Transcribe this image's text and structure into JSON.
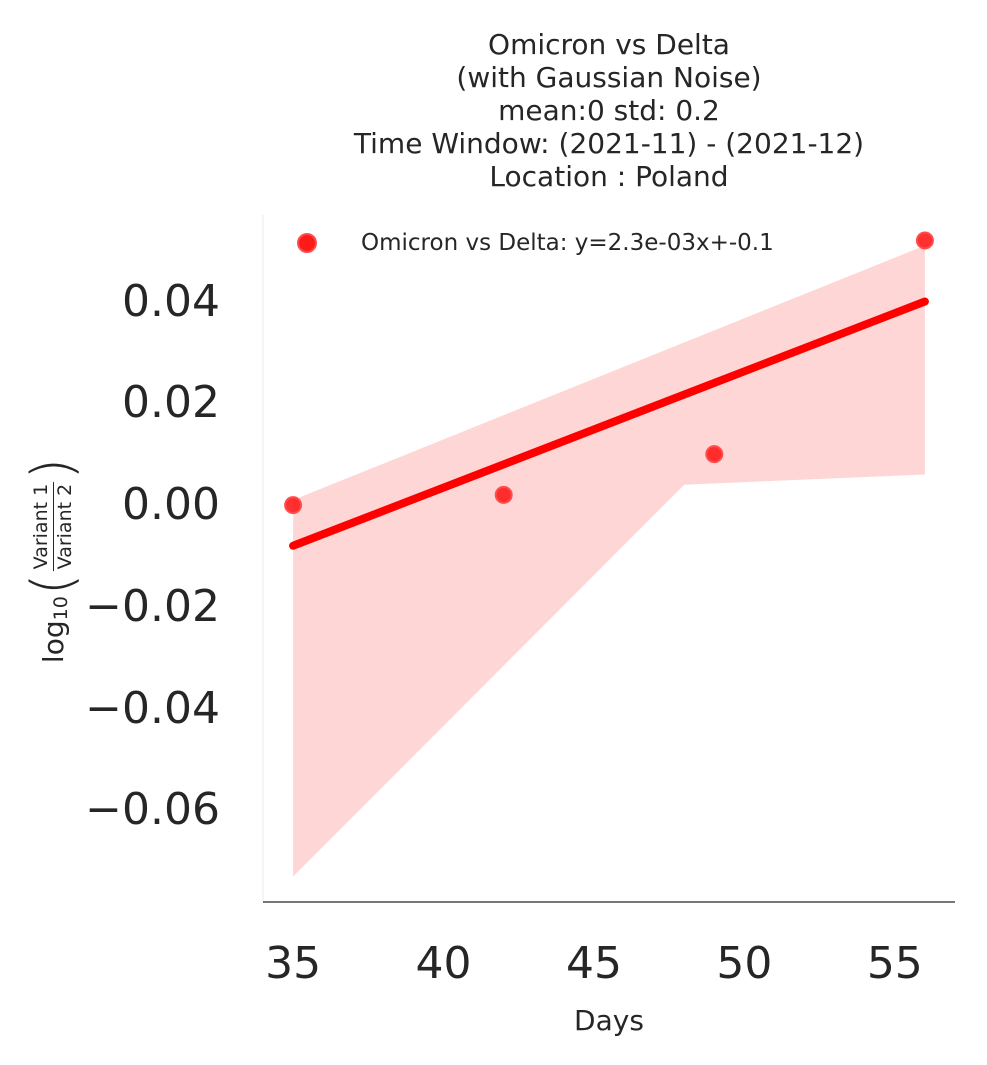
{
  "chart_data": {
    "type": "scatter",
    "title_lines": [
      "Omicron vs Delta",
      "(with Gaussian Noise)",
      "mean:0 std: 0.2",
      "Time Window: (2021-11) - (2021-12)",
      "Location : Poland"
    ],
    "xlabel": "Days",
    "ylabel": {
      "prefix": "log",
      "subscript": "10",
      "numerator": "Variant 1",
      "denominator": "Variant 2"
    },
    "xlim": [
      34,
      57
    ],
    "ylim": [
      -0.078,
      0.057
    ],
    "x_ticks": [
      35,
      40,
      45,
      50,
      55
    ],
    "x_tick_labels": [
      "35",
      "40",
      "45",
      "50",
      "55"
    ],
    "y_ticks": [
      0.04,
      0.02,
      0.0,
      -0.02,
      -0.04,
      -0.06
    ],
    "y_tick_labels": [
      "0.04",
      "0.02",
      "0.00",
      "−0.02",
      "−0.04",
      "−0.06"
    ],
    "grid": false,
    "legend_position": "top-left",
    "series": [
      {
        "name": "Omicron vs Delta: y=2.3e-03x+-0.1",
        "color": "#ff0000",
        "points": [
          {
            "x": 35,
            "y": 0.0
          },
          {
            "x": 42,
            "y": 0.002
          },
          {
            "x": 49,
            "y": 0.01
          },
          {
            "x": 56,
            "y": 0.052
          }
        ],
        "fit_line": [
          {
            "x": 35,
            "y": -0.008
          },
          {
            "x": 56,
            "y": 0.04
          }
        ],
        "confidence_band": {
          "upper": [
            {
              "x": 35,
              "y": 0.001
            },
            {
              "x": 56,
              "y": 0.051
            }
          ],
          "lower": [
            {
              "x": 35,
              "y": -0.073
            },
            {
              "x": 48,
              "y": 0.004
            },
            {
              "x": 56,
              "y": 0.006
            }
          ],
          "color": "#ffd6d6"
        }
      }
    ]
  }
}
